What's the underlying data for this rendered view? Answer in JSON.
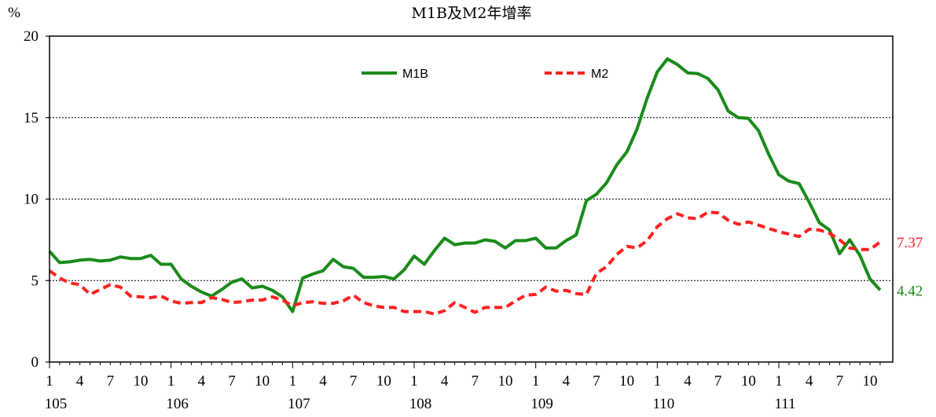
{
  "chart_data": {
    "type": "line",
    "title": "M1B及M2年增率",
    "ylabel": "%",
    "xlabel": "",
    "ylim": [
      0,
      20
    ],
    "yticks": [
      "0",
      "5",
      "10",
      "15",
      "20"
    ],
    "grid": "horizontal dotted at 5, 10, 15",
    "legend_position": "top-center",
    "month_labels": [
      "1",
      "4",
      "7",
      "10"
    ],
    "years": [
      "105",
      "106",
      "107",
      "108",
      "109",
      "110",
      "111"
    ],
    "x_start": "105/1",
    "series": [
      {
        "name": "M1B",
        "color": "#1a8a1a",
        "style": "solid",
        "end_label": "4.42",
        "values": [
          6.8,
          6.1,
          6.15,
          6.25,
          6.3,
          6.2,
          6.25,
          6.45,
          6.35,
          6.35,
          6.55,
          6.0,
          6.0,
          5.1,
          4.65,
          4.3,
          4.05,
          4.45,
          4.9,
          5.1,
          4.55,
          4.65,
          4.4,
          4.0,
          3.1,
          5.15,
          5.4,
          5.6,
          6.3,
          5.85,
          5.75,
          5.2,
          5.2,
          5.25,
          5.1,
          5.65,
          6.5,
          6.0,
          6.85,
          7.6,
          7.2,
          7.3,
          7.3,
          7.5,
          7.4,
          7.0,
          7.45,
          7.45,
          7.6,
          7.0,
          7.0,
          7.45,
          7.8,
          9.9,
          10.3,
          11.0,
          12.1,
          12.9,
          14.3,
          16.2,
          17.8,
          18.6,
          18.25,
          17.75,
          17.7,
          17.4,
          16.7,
          15.4,
          15.0,
          14.95,
          14.2,
          12.75,
          11.5,
          11.1,
          10.95,
          9.8,
          8.55,
          8.1,
          6.65,
          7.5,
          6.55,
          5.1,
          4.42
        ]
      },
      {
        "name": "M2",
        "color": "#ff2020",
        "style": "dashed",
        "end_label": "7.37",
        "values": [
          5.6,
          5.15,
          4.85,
          4.75,
          4.15,
          4.45,
          4.75,
          4.6,
          4.05,
          4.0,
          3.95,
          4.05,
          3.75,
          3.6,
          3.65,
          3.65,
          3.95,
          3.85,
          3.65,
          3.7,
          3.8,
          3.8,
          4.0,
          3.8,
          3.45,
          3.65,
          3.7,
          3.6,
          3.6,
          3.75,
          4.1,
          3.65,
          3.45,
          3.35,
          3.35,
          3.1,
          3.1,
          3.1,
          2.95,
          3.15,
          3.65,
          3.35,
          3.05,
          3.35,
          3.35,
          3.35,
          3.75,
          4.1,
          4.15,
          4.6,
          4.35,
          4.4,
          4.2,
          4.15,
          5.45,
          5.85,
          6.6,
          7.1,
          7.0,
          7.45,
          8.3,
          8.8,
          9.1,
          8.85,
          8.8,
          9.2,
          9.15,
          8.7,
          8.45,
          8.6,
          8.4,
          8.2,
          8.0,
          7.85,
          7.7,
          8.15,
          8.1,
          7.9,
          7.5,
          7.0,
          6.9,
          6.9,
          7.37
        ]
      }
    ]
  }
}
